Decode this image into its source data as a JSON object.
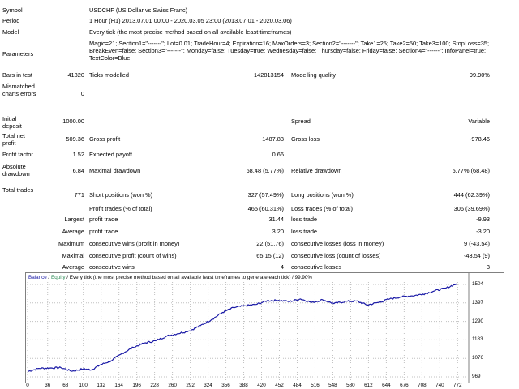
{
  "report": {
    "symbol": {
      "label": "Symbol",
      "value": "USDCHF (US Dollar vs Swiss Franc)"
    },
    "period": {
      "label": "Period",
      "value": "1 Hour (H1) 2013.07.01 00:00 - 2020.03.05 23:00 (2013.07.01 - 2020.03.06)"
    },
    "model": {
      "label": "Model",
      "value": "Every tick (the most precise method based on all available least timeframes)"
    },
    "parameters": {
      "label": "Parameters",
      "value": "Magic=21; Section1=\"-------\"; Lot=0.01; TradeHour=4; Expiration=16; MaxOrders=3; Section2=\"-------\"; Take1=25; Take2=50; Take3=100; StopLoss=35; BreakEven=false; Section3=\"-------\"; Monday=false; Tuesday=true; Wednesday=false; Thursday=false; Friday=false; Section4=\"------\"; InfoPanel=true; TextColor=Blue;"
    },
    "bars_in_test": {
      "label": "Bars in test",
      "value": "41320"
    },
    "ticks_modelled": {
      "label": "Ticks modelled",
      "value": "142813154"
    },
    "modelling_quality": {
      "label": "Modelling quality",
      "value": "99.90%"
    },
    "mismatched": {
      "label": "Mismatched charts errors",
      "value": "0"
    },
    "initial_deposit": {
      "label": "Initial deposit",
      "value": "1000.00"
    },
    "spread": {
      "label": "Spread",
      "value": "Variable"
    },
    "total_net_profit": {
      "label": "Total net profit",
      "value": "509.36"
    },
    "gross_profit": {
      "label": "Gross profit",
      "value": "1487.83"
    },
    "gross_loss": {
      "label": "Gross loss",
      "value": "-978.46"
    },
    "profit_factor": {
      "label": "Profit factor",
      "value": "1.52"
    },
    "expected_payoff": {
      "label": "Expected payoff",
      "value": "0.66"
    },
    "absolute_drawdown": {
      "label": "Absolute drawdown",
      "value": "6.84"
    },
    "maximal_drawdown": {
      "label": "Maximal drawdown",
      "value": "68.48 (5.77%)"
    },
    "relative_drawdown": {
      "label": "Relative drawdown",
      "value": "5.77% (68.48)"
    },
    "total_trades": {
      "label": "Total trades",
      "value": "771"
    },
    "short_positions": {
      "label": "Short positions (won %)",
      "value": "327 (57.49%)"
    },
    "long_positions": {
      "label": "Long positions (won %)",
      "value": "444 (62.39%)"
    },
    "profit_trades": {
      "label": "Profit trades (% of total)",
      "value": "465 (60.31%)"
    },
    "loss_trades": {
      "label": "Loss trades (% of total)",
      "value": "306 (39.69%)"
    },
    "largest": {
      "label": "Largest",
      "profit_label": "profit trade",
      "profit_value": "31.44",
      "loss_label": "loss trade",
      "loss_value": "-9.93"
    },
    "average": {
      "label": "Average",
      "profit_label": "profit trade",
      "profit_value": "3.20",
      "loss_label": "loss trade",
      "loss_value": "-3.20"
    },
    "maximum": {
      "label": "Maximum",
      "profit_label": "consecutive wins (profit in money)",
      "profit_value": "22 (51.76)",
      "loss_label": "consecutive losses (loss in money)",
      "loss_value": "9 (-43.54)"
    },
    "maximal": {
      "label": "Maximal",
      "profit_label": "consecutive profit (count of wins)",
      "profit_value": "65.15 (12)",
      "loss_label": "consecutive loss (count of losses)",
      "loss_value": "-43.54 (9)"
    },
    "average_consecutive": {
      "label": "Average",
      "profit_label": "consecutive wins",
      "profit_value": "4",
      "loss_label": "consecutive losses",
      "loss_value": "3"
    }
  },
  "chart": {
    "title_balance": "Balance",
    "title_sep1": " / ",
    "title_equity": "Equity",
    "title_rest": " / Every tick (the most precise method based on all available least timeframes to generate each tick) / 99.90%",
    "colors": {
      "balance": "#1a1aa6",
      "equity": "#2e8b57",
      "grid": "#c0c0c0",
      "frame": "#808080"
    }
  },
  "chart_data": {
    "type": "line",
    "x_ticks": [
      "0",
      "36",
      "68",
      "100",
      "132",
      "164",
      "196",
      "228",
      "260",
      "292",
      "324",
      "356",
      "388",
      "420",
      "452",
      "484",
      "516",
      "548",
      "580",
      "612",
      "644",
      "676",
      "708",
      "740",
      "772"
    ],
    "y_ticks": [
      "1504",
      "1397",
      "1290",
      "1183",
      "1076",
      "969"
    ],
    "xlim": [
      0,
      789
    ],
    "ylim": [
      969,
      1504
    ],
    "series": [
      {
        "name": "Balance",
        "x": [
          0,
          20,
          40,
          60,
          80,
          100,
          115,
          130,
          150,
          170,
          190,
          210,
          230,
          250,
          270,
          290,
          310,
          330,
          350,
          370,
          390,
          410,
          430,
          450,
          470,
          490,
          510,
          530,
          550,
          570,
          590,
          610,
          630,
          650,
          670,
          690,
          710,
          730,
          750,
          771
        ],
        "y": [
          1000,
          1018,
          1020,
          1022,
          1002,
          1015,
          1010,
          1038,
          1062,
          1105,
          1140,
          1165,
          1178,
          1205,
          1220,
          1235,
          1265,
          1300,
          1342,
          1370,
          1380,
          1388,
          1410,
          1412,
          1405,
          1420,
          1400,
          1415,
          1393,
          1405,
          1408,
          1385,
          1400,
          1420,
          1432,
          1438,
          1448,
          1466,
          1482,
          1509
        ]
      }
    ]
  }
}
